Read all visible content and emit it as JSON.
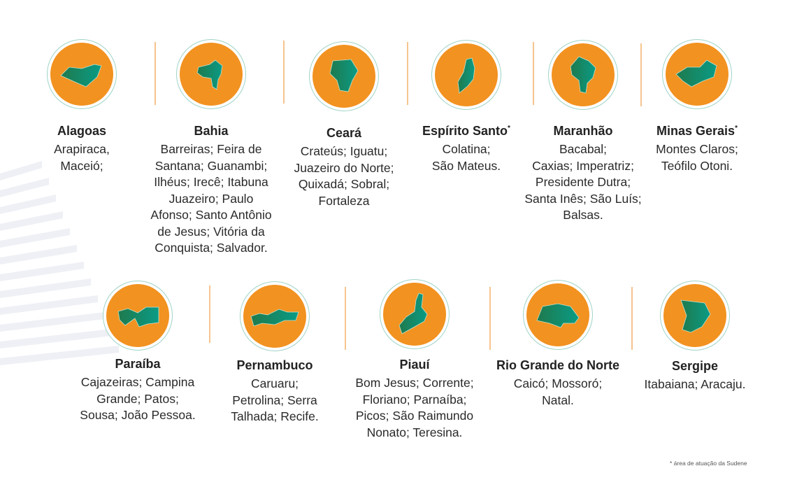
{
  "colors": {
    "orange": "#f29220",
    "green_dark": "#1f7a4d",
    "green_light": "#0a9b86",
    "ring": "#9fd3c7"
  },
  "states": [
    {
      "name": "Alagoas",
      "star": "",
      "icon": "alagoas-map-icon",
      "lines": [
        "Arapiraca,",
        "Maceió;"
      ]
    },
    {
      "name": "Bahia",
      "star": "",
      "icon": "bahia-map-icon",
      "lines": [
        "Barreiras; Feira de",
        "Santana; Guanambi;",
        "Ilhéus; Irecê; Itabuna",
        "Juazeiro; Paulo",
        "Afonso; Santo Antônio",
        "de Jesus; Vitória da",
        "Conquista; Salvador."
      ]
    },
    {
      "name": "Ceará",
      "star": "",
      "icon": "ceara-map-icon",
      "lines": [
        "Crateús; Iguatu;",
        "Juazeiro do Norte;",
        "Quixadá; Sobral;",
        "Fortaleza"
      ]
    },
    {
      "name": "Espírito Santo",
      "star": "*",
      "icon": "espirito-santo-map-icon",
      "lines": [
        "Colatina;",
        "São Mateus."
      ]
    },
    {
      "name": "Maranhão",
      "star": "",
      "icon": "maranhao-map-icon",
      "lines": [
        "Bacabal;",
        "Caxias; Imperatriz;",
        "Presidente Dutra;",
        "Santa Inês; São Luís;",
        "Balsas."
      ]
    },
    {
      "name": "Minas Gerais",
      "star": "*",
      "icon": "minas-gerais-map-icon",
      "lines": [
        "Montes Claros;",
        "Teófilo Otoni."
      ]
    },
    {
      "name": "Paraíba",
      "star": "",
      "icon": "paraiba-map-icon",
      "lines": [
        "Cajazeiras; Campina",
        "Grande; Patos;",
        "Sousa; João Pessoa."
      ]
    },
    {
      "name": "Pernambuco",
      "star": "",
      "icon": "pernambuco-map-icon",
      "lines": [
        "Caruaru;",
        "Petrolina; Serra",
        "Talhada; Recife."
      ]
    },
    {
      "name": "Piauí",
      "star": "",
      "icon": "piaui-map-icon",
      "lines": [
        "Bom Jesus; Corrente;",
        "Floriano; Parnaíba;",
        "Picos; São Raimundo",
        "Nonato; Teresina."
      ]
    },
    {
      "name": "Rio Grande do Norte",
      "star": "",
      "icon": "rio-grande-do-norte-map-icon",
      "lines": [
        "Caicó; Mossoró;",
        "Natal."
      ]
    },
    {
      "name": "Sergipe",
      "star": "",
      "icon": "sergipe-map-icon",
      "lines": [
        "Itabaiana; Aracaju."
      ]
    }
  ],
  "footnote": "* área de atuação da Sudene"
}
